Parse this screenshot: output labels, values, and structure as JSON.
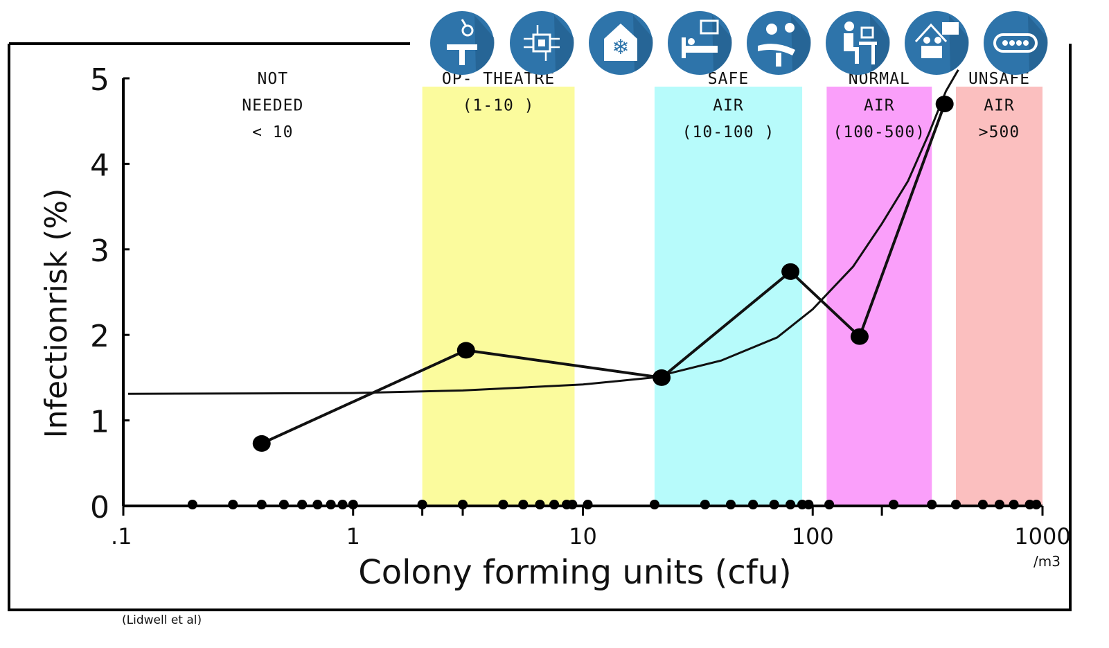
{
  "chart_data": {
    "type": "line",
    "xscale": "log",
    "xlim": [
      0.1,
      1000
    ],
    "ylim": [
      0,
      5
    ],
    "ylabel": "Infectionrisk (%)",
    "xlabel": "Colony forming units (cfu)",
    "x_unit_note": "/m3",
    "x_ticks": [
      ".1",
      "1",
      "10",
      "100",
      "1000"
    ],
    "x_tick_values": [
      0.1,
      1,
      10,
      100,
      1000
    ],
    "y_ticks": [
      "0",
      "1",
      "2",
      "3",
      "4",
      "5"
    ],
    "y_tick_values": [
      0,
      1,
      2,
      3,
      4,
      5
    ],
    "grid": false,
    "bands": [
      {
        "lines": [
          "NOT",
          "NEEDED",
          "< 10"
        ],
        "from": 0.1,
        "to": 2,
        "color": "#ffffff"
      },
      {
        "lines": [
          "OP- THEATRE",
          "(1-10 )"
        ],
        "from": 2,
        "to": 9.2,
        "color": "#fbfb9d"
      },
      {
        "lines": [
          "SAFE",
          "AIR",
          "(10-100 )"
        ],
        "from": 20.5,
        "to": 90,
        "color": "#b7fbfb"
      },
      {
        "lines": [
          "NORMAL",
          "AIR",
          "(100-500)"
        ],
        "from": 115,
        "to": 330,
        "color": "#fa9ffa"
      },
      {
        "lines": [
          "UNSAFE",
          "AIR",
          ">500"
        ],
        "from": 420,
        "to": 1000,
        "color": "#fbbfbf"
      }
    ],
    "series": [
      {
        "kind": "observed",
        "points": [
          [
            0.4,
            0.73
          ],
          [
            3.1,
            1.82
          ],
          [
            22,
            1.5
          ],
          [
            80,
            2.74
          ],
          [
            160,
            1.98
          ],
          [
            375,
            4.7
          ]
        ]
      },
      {
        "kind": "fit",
        "points": [
          [
            0.105,
            1.31
          ],
          [
            1,
            1.32
          ],
          [
            3,
            1.35
          ],
          [
            10,
            1.42
          ],
          [
            20,
            1.5
          ],
          [
            40,
            1.7
          ],
          [
            70,
            1.97
          ],
          [
            100,
            2.3
          ],
          [
            150,
            2.8
          ],
          [
            200,
            3.3
          ],
          [
            260,
            3.8
          ],
          [
            320,
            4.35
          ],
          [
            380,
            4.85
          ],
          [
            430,
            5.1
          ]
        ]
      }
    ],
    "baseline_points": [
      0.2,
      0.3,
      0.4,
      0.5,
      0.6,
      0.7,
      0.8,
      0.9,
      1.0,
      2.0,
      3.0,
      4.5,
      5.5,
      6.5,
      7.5,
      8.5,
      9.0,
      10.5,
      20.5,
      34,
      44,
      55,
      68,
      80,
      90,
      96,
      118,
      225,
      330,
      420,
      550,
      650,
      750,
      880,
      940
    ],
    "colors": {
      "line": "#111111",
      "marker": "#000000",
      "icon": "#2e74aa"
    }
  },
  "icons": [
    "operating-room-icon",
    "circuit-board-icon",
    "cold-storage-icon",
    "hospital-bed-icon",
    "dental-treatment-icon",
    "office-desk-icon",
    "meeting-room-icon",
    "conveyor-icon"
  ],
  "caption": "(Lidwell et al)"
}
